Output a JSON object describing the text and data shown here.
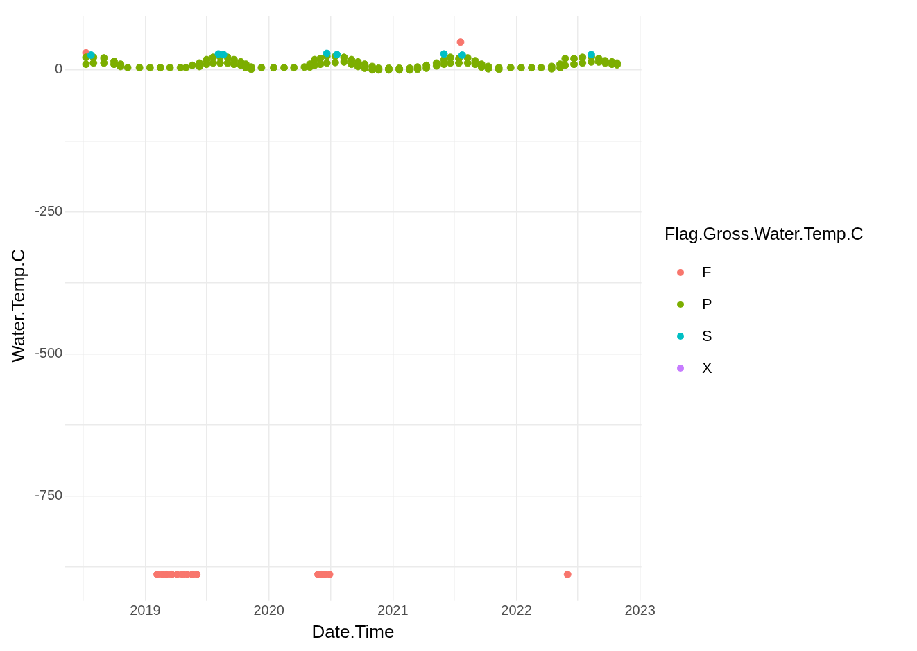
{
  "chart_data": {
    "type": "scatter",
    "xlabel": "Date.Time",
    "ylabel": "Water.Temp.C",
    "legend_title": "Flag.Gross.Water.Temp.C",
    "legend": "right",
    "grid": true,
    "marker": "circle",
    "xlim": [
      "2018-05-08",
      "2023-01-05"
    ],
    "xticks": [
      {
        "value": "2018-07",
        "label": null
      },
      "2019",
      {
        "value": "2019-07",
        "label": null
      },
      "2020",
      {
        "value": "2020-07",
        "label": null
      },
      "2021",
      {
        "value": "2021-07",
        "label": null
      },
      "2022",
      {
        "value": "2022-07",
        "label": null
      },
      "2023"
    ],
    "ylim": [
      -925,
      95
    ],
    "yticks": [
      {
        "value": -875,
        "label": null
      },
      -750,
      {
        "value": -625,
        "label": null
      },
      -500,
      {
        "value": -375,
        "label": null
      },
      -250,
      {
        "value": -125,
        "label": null
      },
      0
    ],
    "series": [
      {
        "name": "F",
        "color": "#f8766d",
        "x": [
          "2018-07-10",
          "2021-07-20",
          "2019-02-05",
          "2019-02-20",
          "2019-03-05",
          "2019-03-20",
          "2019-04-05",
          "2019-04-20",
          "2019-05-05",
          "2019-05-20",
          "2019-06-02",
          "2020-05-25",
          "2020-06-05",
          "2020-06-15",
          "2020-06-28",
          "2022-06-01"
        ],
        "values": [
          30,
          49,
          -888,
          -888,
          -888,
          -888,
          -888,
          -888,
          -888,
          -888,
          -888,
          -888,
          -888,
          -888,
          -888,
          -888
        ]
      },
      {
        "name": "P",
        "color": "#7cae00",
        "x": [
          "2018-07-10",
          "2018-07-10",
          "2018-08-01",
          "2018-08-01",
          "2018-09-01",
          "2018-09-01",
          "2018-10-01",
          "2018-10-01",
          "2018-10-20",
          "2018-10-20",
          "2018-11-10",
          "2018-12-15",
          "2019-01-15",
          "2019-02-15",
          "2019-03-15",
          "2019-04-15",
          "2019-05-01",
          "2019-05-20",
          "2019-06-10",
          "2019-06-10",
          "2019-07-01",
          "2019-07-01",
          "2019-07-20",
          "2019-07-20",
          "2019-08-10",
          "2019-08-10",
          "2019-09-01",
          "2019-09-01",
          "2019-09-20",
          "2019-09-20",
          "2019-10-10",
          "2019-10-10",
          "2019-10-25",
          "2019-10-25",
          "2019-11-10",
          "2019-11-10",
          "2019-12-10",
          "2020-01-15",
          "2020-02-15",
          "2020-03-15",
          "2020-04-15",
          "2020-05-01",
          "2020-05-01",
          "2020-05-15",
          "2020-05-15",
          "2020-06-01",
          "2020-06-01",
          "2020-06-20",
          "2020-06-20",
          "2020-07-15",
          "2020-07-15",
          "2020-08-10",
          "2020-08-10",
          "2020-09-01",
          "2020-09-01",
          "2020-09-20",
          "2020-09-20",
          "2020-10-10",
          "2020-10-10",
          "2020-11-01",
          "2020-11-01",
          "2020-11-20",
          "2020-11-20",
          "2020-12-20",
          "2020-12-20",
          "2021-01-20",
          "2021-01-20",
          "2021-02-20",
          "2021-02-20",
          "2021-03-15",
          "2021-03-15",
          "2021-04-10",
          "2021-04-10",
          "2021-05-10",
          "2021-05-10",
          "2021-06-01",
          "2021-06-01",
          "2021-06-20",
          "2021-06-20",
          "2021-07-15",
          "2021-07-15",
          "2021-08-10",
          "2021-08-10",
          "2021-09-01",
          "2021-09-01",
          "2021-09-20",
          "2021-09-20",
          "2021-10-10",
          "2021-10-10",
          "2021-11-10",
          "2021-11-10",
          "2021-12-15",
          "2022-01-15",
          "2022-02-15",
          "2022-03-15",
          "2022-04-15",
          "2022-04-15",
          "2022-05-10",
          "2022-05-10",
          "2022-05-25",
          "2022-05-25",
          "2022-06-20",
          "2022-06-20",
          "2022-07-15",
          "2022-07-15",
          "2022-08-10",
          "2022-08-10",
          "2022-09-01",
          "2022-09-01",
          "2022-09-20",
          "2022-09-20",
          "2022-10-10",
          "2022-10-10",
          "2022-10-25",
          "2022-10-25"
        ],
        "values": [
          22,
          10,
          22,
          12,
          21,
          12,
          15,
          10,
          10,
          6,
          4,
          4,
          4,
          4,
          4,
          4,
          4,
          8,
          12,
          6,
          18,
          10,
          22,
          12,
          23,
          12,
          22,
          12,
          18,
          10,
          14,
          8,
          10,
          4,
          5,
          1,
          4,
          4,
          4,
          4,
          5,
          10,
          5,
          18,
          8,
          20,
          10,
          24,
          12,
          24,
          13,
          22,
          14,
          18,
          10,
          14,
          6,
          10,
          3,
          6,
          0,
          3,
          0,
          3,
          0,
          3,
          0,
          3,
          0,
          5,
          1,
          8,
          3,
          12,
          7,
          18,
          10,
          22,
          12,
          20,
          12,
          21,
          12,
          16,
          10,
          10,
          5,
          6,
          2,
          4,
          1,
          4,
          4,
          4,
          4,
          6,
          2,
          10,
          4,
          20,
          8,
          20,
          10,
          22,
          12,
          23,
          14,
          20,
          14,
          16,
          12,
          14,
          10,
          12,
          9
        ]
      },
      {
        "name": "S",
        "color": "#00bfc4",
        "x": [
          "2018-07-25",
          "2019-08-05",
          "2019-08-20",
          "2020-06-20",
          "2020-07-20",
          "2021-06-01",
          "2021-07-25",
          "2022-08-10"
        ],
        "values": [
          26,
          28,
          27,
          29,
          27,
          28,
          26,
          27
        ]
      },
      {
        "name": "X",
        "color": "#c77cff"
      }
    ]
  }
}
